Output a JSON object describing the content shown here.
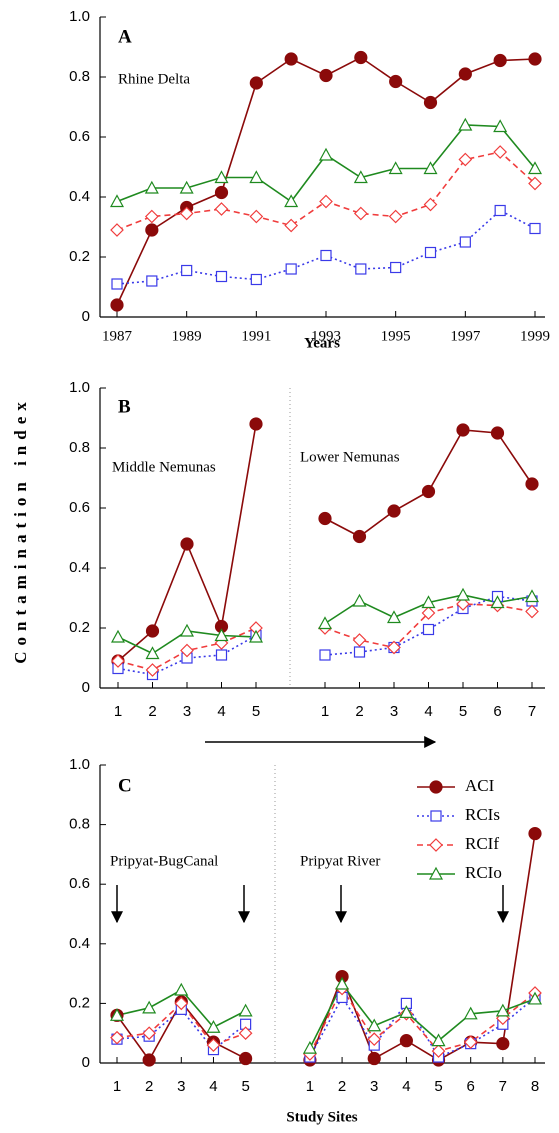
{
  "chart_data": [
    {
      "type": "line",
      "panel_label": "A",
      "annotation": "Rhine Delta",
      "x_label": "Years",
      "x": [
        1987,
        1988,
        1989,
        1990,
        1991,
        1992,
        1993,
        1994,
        1995,
        1996,
        1997,
        1998,
        1999
      ],
      "xlim": [
        1987,
        1999
      ],
      "xticks": [
        1987,
        1989,
        1991,
        1993,
        1995,
        1997,
        1999
      ],
      "ylim": [
        0,
        1
      ],
      "yticks": [
        0,
        0.2,
        0.4,
        0.6,
        0.8,
        {
          "value": 1,
          "label": "1.0"
        }
      ],
      "series": [
        {
          "name": "ACI",
          "color": "#8b0a0a",
          "marker": "circle",
          "line_style": "solid",
          "values": [
            0.04,
            0.29,
            0.365,
            0.415,
            0.78,
            0.86,
            0.805,
            0.865,
            0.785,
            0.715,
            0.81,
            0.855,
            0.86
          ]
        },
        {
          "name": "RCIs",
          "color": "#3a3ae8",
          "marker": "square",
          "line_style": "dotted",
          "values": [
            0.11,
            0.12,
            0.155,
            0.135,
            0.125,
            0.16,
            0.205,
            0.16,
            0.165,
            0.215,
            0.25,
            0.355,
            0.295
          ]
        },
        {
          "name": "RCIf",
          "color": "#f03c3c",
          "marker": "diamond",
          "line_style": "dashed",
          "values": [
            0.29,
            0.335,
            0.345,
            0.36,
            0.335,
            0.305,
            0.385,
            0.345,
            0.335,
            0.375,
            0.525,
            0.55,
            0.445
          ]
        },
        {
          "name": "RCIo",
          "color": "#1f8a1f",
          "marker": "triangle",
          "line_style": "solid",
          "values": [
            0.385,
            0.43,
            0.43,
            0.465,
            0.465,
            0.385,
            0.54,
            0.465,
            0.495,
            0.495,
            0.64,
            0.635,
            0.495
          ]
        }
      ]
    },
    {
      "type": "line",
      "panel_label": "B",
      "y_label": "Contamination index",
      "group_labels": [
        "Middle Nemunas",
        "Lower Nemunas"
      ],
      "categories": [
        "1",
        "2",
        "3",
        "4",
        "5",
        null,
        "1",
        "2",
        "3",
        "4",
        "5",
        "6",
        "7"
      ],
      "ylim": [
        0,
        1
      ],
      "yticks": [
        0,
        0.2,
        0.4,
        0.6,
        0.8,
        {
          "value": 1,
          "label": "1.0"
        }
      ],
      "series": [
        {
          "name": "ACI",
          "color": "#8b0a0a",
          "marker": "circle",
          "line_style": "solid",
          "values": [
            0.09,
            0.19,
            0.48,
            0.205,
            0.88,
            null,
            0.565,
            0.505,
            0.59,
            0.655,
            0.86,
            0.85,
            0.68
          ]
        },
        {
          "name": "RCIs",
          "color": "#3a3ae8",
          "marker": "square",
          "line_style": "dotted",
          "values": [
            0.065,
            0.045,
            0.1,
            0.11,
            0.175,
            null,
            0.11,
            0.12,
            0.135,
            0.195,
            0.265,
            0.305,
            0.29
          ]
        },
        {
          "name": "RCIf",
          "color": "#f03c3c",
          "marker": "diamond",
          "line_style": "dashed",
          "values": [
            0.09,
            0.06,
            0.125,
            0.15,
            0.2,
            null,
            0.2,
            0.16,
            0.135,
            0.25,
            0.28,
            0.275,
            0.255
          ]
        },
        {
          "name": "RCIo",
          "color": "#1f8a1f",
          "marker": "triangle",
          "line_style": "solid",
          "values": [
            0.17,
            0.115,
            0.19,
            0.175,
            0.17,
            null,
            0.215,
            0.29,
            0.235,
            0.285,
            0.31,
            0.285,
            0.305
          ]
        }
      ]
    },
    {
      "type": "line",
      "panel_label": "C",
      "x_label": "Study Sites",
      "legend": "upper right",
      "group_labels": [
        "Pripyat-BugCanal",
        "Pripyat River"
      ],
      "categories": [
        "1",
        "2",
        "3",
        "4",
        "5",
        null,
        "1",
        "2",
        "3",
        "4",
        "5",
        "6",
        "7",
        "8"
      ],
      "ylim": [
        0,
        1
      ],
      "yticks": [
        0,
        0.2,
        0.4,
        0.6,
        0.8,
        {
          "value": 1,
          "label": "1.0"
        }
      ],
      "series": [
        {
          "name": "ACI",
          "color": "#8b0a0a",
          "marker": "circle",
          "line_style": "solid",
          "values": [
            0.16,
            0.01,
            0.205,
            0.07,
            0.015,
            null,
            0.01,
            0.29,
            0.015,
            0.075,
            0.01,
            0.07,
            0.065,
            0.77
          ]
        },
        {
          "name": "RCIs",
          "color": "#3a3ae8",
          "marker": "square",
          "line_style": "dotted",
          "values": [
            0.08,
            0.09,
            0.18,
            0.045,
            0.13,
            null,
            0.02,
            0.22,
            0.06,
            0.2,
            0.02,
            0.065,
            0.13,
            0.22
          ]
        },
        {
          "name": "RCIf",
          "color": "#f03c3c",
          "marker": "diamond",
          "line_style": "dashed",
          "values": [
            0.085,
            0.1,
            0.2,
            0.06,
            0.1,
            null,
            0.03,
            0.25,
            0.08,
            0.165,
            0.04,
            0.07,
            0.15,
            0.235
          ]
        },
        {
          "name": "RCIo",
          "color": "#1f8a1f",
          "marker": "triangle",
          "line_style": "solid",
          "values": [
            0.16,
            0.185,
            0.245,
            0.12,
            0.175,
            null,
            0.05,
            0.265,
            0.125,
            0.17,
            0.075,
            0.165,
            0.175,
            0.215
          ]
        }
      ]
    }
  ]
}
